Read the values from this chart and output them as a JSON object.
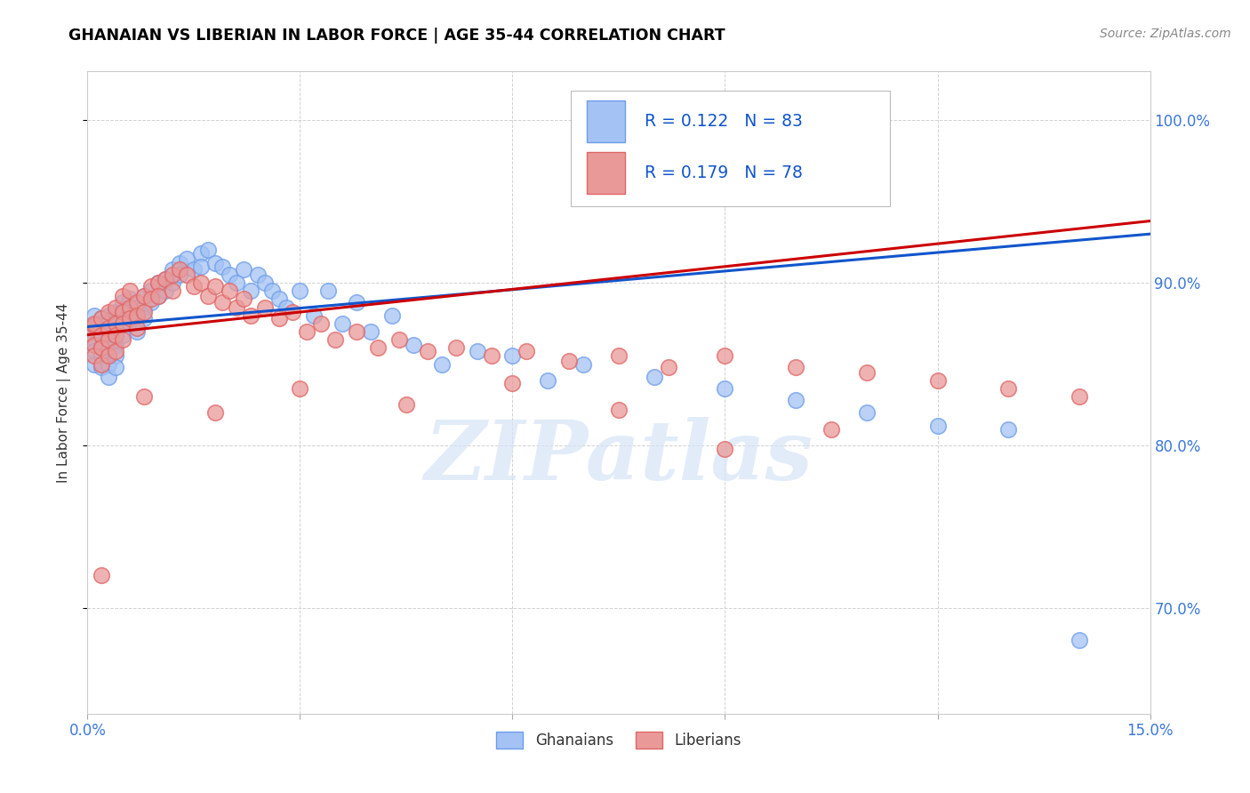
{
  "title": "GHANAIAN VS LIBERIAN IN LABOR FORCE | AGE 35-44 CORRELATION CHART",
  "source": "Source: ZipAtlas.com",
  "ylabel": "In Labor Force | Age 35-44",
  "xlim": [
    0.0,
    0.15
  ],
  "ylim": [
    0.635,
    1.03
  ],
  "watermark_text": "ZIPatlas",
  "blue_color": "#a4c2f4",
  "blue_edge_color": "#6d9eeb",
  "pink_color": "#ea9999",
  "pink_edge_color": "#e06666",
  "blue_line_color": "#1155cc",
  "pink_line_color": "#cc0000",
  "legend_text_color": "#1155cc",
  "legend_R1": "R = 0.122",
  "legend_N1": "N = 83",
  "legend_R2": "R = 0.179",
  "legend_N2": "N = 78",
  "title_color": "#000000",
  "grid_color": "#cccccc",
  "blue_trend_x": [
    0.0,
    0.15
  ],
  "blue_trend_y": [
    0.873,
    0.93
  ],
  "pink_trend_x": [
    0.0,
    0.15
  ],
  "pink_trend_y": [
    0.868,
    0.938
  ],
  "blue_scatter_x": [
    0.0,
    0.001,
    0.001,
    0.001,
    0.001,
    0.001,
    0.002,
    0.002,
    0.002,
    0.002,
    0.002,
    0.003,
    0.003,
    0.003,
    0.003,
    0.003,
    0.003,
    0.003,
    0.004,
    0.004,
    0.004,
    0.004,
    0.004,
    0.004,
    0.005,
    0.005,
    0.005,
    0.005,
    0.006,
    0.006,
    0.006,
    0.007,
    0.007,
    0.007,
    0.008,
    0.008,
    0.008,
    0.009,
    0.009,
    0.01,
    0.01,
    0.011,
    0.011,
    0.012,
    0.012,
    0.013,
    0.013,
    0.014,
    0.015,
    0.016,
    0.016,
    0.017,
    0.018,
    0.019,
    0.02,
    0.021,
    0.022,
    0.023,
    0.024,
    0.025,
    0.026,
    0.027,
    0.028,
    0.03,
    0.032,
    0.034,
    0.036,
    0.038,
    0.04,
    0.043,
    0.046,
    0.05,
    0.055,
    0.06,
    0.065,
    0.07,
    0.08,
    0.09,
    0.1,
    0.11,
    0.12,
    0.13,
    0.14
  ],
  "blue_scatter_y": [
    0.871,
    0.873,
    0.865,
    0.88,
    0.858,
    0.85,
    0.872,
    0.878,
    0.862,
    0.855,
    0.848,
    0.87,
    0.88,
    0.875,
    0.865,
    0.86,
    0.85,
    0.842,
    0.882,
    0.876,
    0.868,
    0.862,
    0.855,
    0.848,
    0.888,
    0.882,
    0.875,
    0.868,
    0.89,
    0.882,
    0.875,
    0.885,
    0.878,
    0.87,
    0.892,
    0.885,
    0.878,
    0.895,
    0.888,
    0.9,
    0.892,
    0.902,
    0.895,
    0.908,
    0.9,
    0.912,
    0.905,
    0.915,
    0.908,
    0.918,
    0.91,
    0.92,
    0.912,
    0.91,
    0.905,
    0.9,
    0.908,
    0.895,
    0.905,
    0.9,
    0.895,
    0.89,
    0.885,
    0.895,
    0.88,
    0.895,
    0.875,
    0.888,
    0.87,
    0.88,
    0.862,
    0.85,
    0.858,
    0.855,
    0.84,
    0.85,
    0.842,
    0.835,
    0.828,
    0.82,
    0.812,
    0.81,
    0.68
  ],
  "pink_scatter_x": [
    0.0,
    0.001,
    0.001,
    0.001,
    0.001,
    0.002,
    0.002,
    0.002,
    0.002,
    0.003,
    0.003,
    0.003,
    0.003,
    0.004,
    0.004,
    0.004,
    0.004,
    0.005,
    0.005,
    0.005,
    0.005,
    0.006,
    0.006,
    0.006,
    0.007,
    0.007,
    0.007,
    0.008,
    0.008,
    0.009,
    0.009,
    0.01,
    0.01,
    0.011,
    0.012,
    0.012,
    0.013,
    0.014,
    0.015,
    0.016,
    0.017,
    0.018,
    0.019,
    0.02,
    0.021,
    0.022,
    0.023,
    0.025,
    0.027,
    0.029,
    0.031,
    0.033,
    0.035,
    0.038,
    0.041,
    0.044,
    0.048,
    0.052,
    0.057,
    0.062,
    0.068,
    0.075,
    0.082,
    0.09,
    0.1,
    0.11,
    0.12,
    0.13,
    0.14,
    0.09,
    0.105,
    0.075,
    0.06,
    0.045,
    0.03,
    0.018,
    0.008,
    0.002
  ],
  "pink_scatter_y": [
    0.869,
    0.874,
    0.862,
    0.875,
    0.855,
    0.878,
    0.868,
    0.86,
    0.85,
    0.882,
    0.872,
    0.865,
    0.855,
    0.885,
    0.875,
    0.868,
    0.858,
    0.892,
    0.882,
    0.875,
    0.865,
    0.895,
    0.885,
    0.878,
    0.888,
    0.88,
    0.872,
    0.892,
    0.882,
    0.898,
    0.89,
    0.9,
    0.892,
    0.902,
    0.905,
    0.895,
    0.908,
    0.905,
    0.898,
    0.9,
    0.892,
    0.898,
    0.888,
    0.895,
    0.885,
    0.89,
    0.88,
    0.885,
    0.878,
    0.882,
    0.87,
    0.875,
    0.865,
    0.87,
    0.86,
    0.865,
    0.858,
    0.86,
    0.855,
    0.858,
    0.852,
    0.855,
    0.848,
    0.855,
    0.848,
    0.845,
    0.84,
    0.835,
    0.83,
    0.798,
    0.81,
    0.822,
    0.838,
    0.825,
    0.835,
    0.82,
    0.83,
    0.72
  ]
}
